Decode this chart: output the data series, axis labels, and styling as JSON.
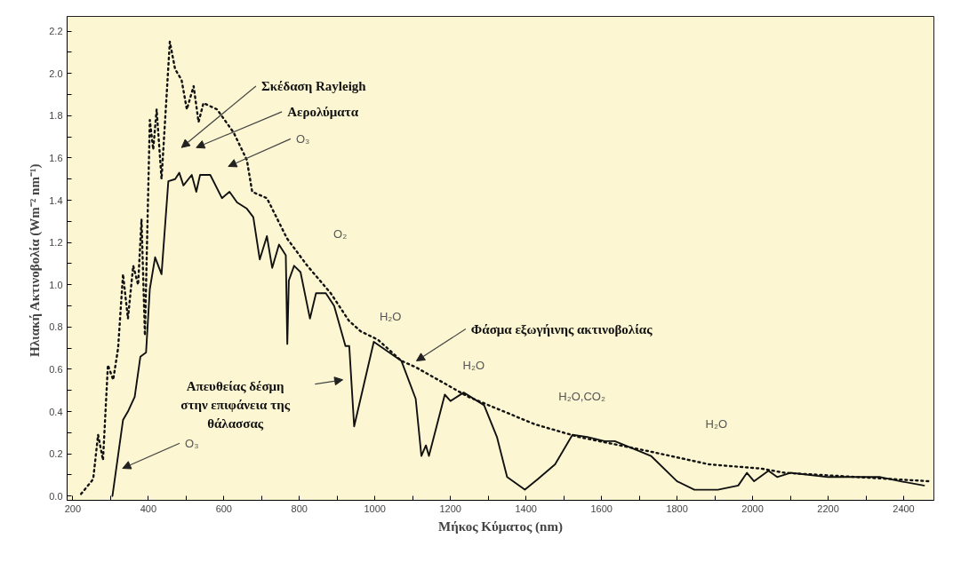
{
  "chart_data": {
    "type": "line",
    "xlabel": "Μήκος Κύματος (nm)",
    "ylabel": "Ηλιακή Ακτινοβολία  (Wm⁻² nm⁻¹)",
    "xlim": [
      185,
      2480
    ],
    "ylim": [
      -0.02,
      2.27
    ],
    "xticks": [
      200,
      {
        "value": 300,
        "label": null
      },
      400,
      {
        "value": 500,
        "label": null
      },
      600,
      {
        "value": 700,
        "label": null
      },
      800,
      {
        "value": 900,
        "label": null
      },
      1000,
      {
        "value": 1100,
        "label": null
      },
      1200,
      {
        "value": 1300,
        "label": null
      },
      1400,
      {
        "value": 1500,
        "label": null
      },
      1600,
      {
        "value": 1700,
        "label": null
      },
      1800,
      {
        "value": 1900,
        "label": null
      },
      2000,
      {
        "value": 2100,
        "label": null
      },
      2200,
      {
        "value": 2300,
        "label": null
      },
      2400
    ],
    "yticks": [
      {
        "value": 0,
        "label": "0.0"
      },
      {
        "value": 0.1,
        "label": null
      },
      0.2,
      {
        "value": 0.3,
        "label": null
      },
      0.4,
      {
        "value": 0.5,
        "label": null
      },
      0.6,
      {
        "value": 0.7,
        "label": null
      },
      0.8,
      {
        "value": 0.9,
        "label": null
      },
      {
        "value": 1,
        "label": "1.0"
      },
      {
        "value": 1.1,
        "label": null
      },
      1.2,
      {
        "value": 1.3,
        "label": null
      },
      1.4,
      {
        "value": 1.5,
        "label": null
      },
      1.6,
      {
        "value": 1.7,
        "label": null
      },
      1.8,
      {
        "value": 1.9,
        "label": null
      },
      {
        "value": 2,
        "label": "2.0"
      },
      {
        "value": 2.1,
        "label": null
      },
      2.2
    ],
    "grid": false,
    "series": [
      {
        "color": "#111111",
        "line_style": "solid",
        "x": [
          305,
          333,
          346,
          364,
          379,
          394,
          404,
          418,
          435,
          453,
          471,
          482,
          493,
          515,
          527,
          537,
          564,
          595,
          615,
          635,
          661,
          678,
          695,
          714,
          728,
          746,
          764,
          768,
          772,
          786,
          803,
          828,
          844,
          870,
          892,
          922,
          932,
          945,
          997,
          1070,
          1108,
          1123,
          1135,
          1143,
          1185,
          1200,
          1235,
          1289,
          1323,
          1350,
          1397,
          1431,
          1477,
          1523,
          1562,
          1608,
          1635,
          1731,
          1800,
          1846,
          1908,
          1962,
          1985,
          2004,
          2042,
          2065,
          2100,
          2200,
          2338,
          2392,
          2454
        ],
        "values": [
          0,
          0.36,
          0.4,
          0.47,
          0.66,
          0.68,
          0.98,
          1.13,
          1.05,
          1.49,
          1.5,
          1.53,
          1.47,
          1.52,
          1.44,
          1.52,
          1.52,
          1.41,
          1.44,
          1.39,
          1.36,
          1.32,
          1.12,
          1.23,
          1.08,
          1.19,
          1.14,
          0.72,
          1.02,
          1.09,
          1.06,
          0.84,
          0.96,
          0.96,
          0.9,
          0.71,
          0.71,
          0.33,
          0.73,
          0.64,
          0.46,
          0.19,
          0.24,
          0.19,
          0.48,
          0.45,
          0.49,
          0.43,
          0.28,
          0.09,
          0.03,
          0.08,
          0.15,
          0.29,
          0.28,
          0.26,
          0.26,
          0.19,
          0.07,
          0.03,
          0.03,
          0.05,
          0.11,
          0.07,
          0.12,
          0.09,
          0.11,
          0.09,
          0.09,
          0.07,
          0.05
        ]
      },
      {
        "color": "#111111",
        "line_style": "dotted",
        "x": [
          222,
          254,
          267,
          280,
          293,
          307,
          320,
          333,
          346,
          360,
          373,
          382,
          391,
          404,
          413,
          422,
          435,
          457,
          471,
          488,
          502,
          520,
          533,
          546,
          582,
          626,
          661,
          675,
          714,
          767,
          821,
          883,
          931,
          962,
          1008,
          1070,
          1108,
          1247,
          1423,
          1539,
          1731,
          1885,
          2023,
          2085,
          2469
        ],
        "values": [
          0.01,
          0.08,
          0.29,
          0.17,
          0.62,
          0.55,
          0.7,
          1.05,
          0.84,
          1.09,
          1,
          1.31,
          0.76,
          1.78,
          1.64,
          1.83,
          1.5,
          2.15,
          2.02,
          1.97,
          1.83,
          1.94,
          1.77,
          1.86,
          1.83,
          1.72,
          1.59,
          1.44,
          1.41,
          1.22,
          1.09,
          0.96,
          0.83,
          0.78,
          0.74,
          0.64,
          0.61,
          0.47,
          0.34,
          0.28,
          0.21,
          0.15,
          0.13,
          0.11,
          0.07
        ]
      }
    ],
    "annotations": [
      "Σκέδαση Rayleigh",
      "Αερολύματα",
      "O₃",
      "Απευθείας δέσμη\nστην επιφάνεια της\nθάλασσας",
      "Φάσμα εξωγήινης ακτινοβολίας",
      "O₃",
      "O₂",
      "H₂O",
      "H₂O",
      "H₂O,CO₂",
      "H₂O"
    ]
  }
}
